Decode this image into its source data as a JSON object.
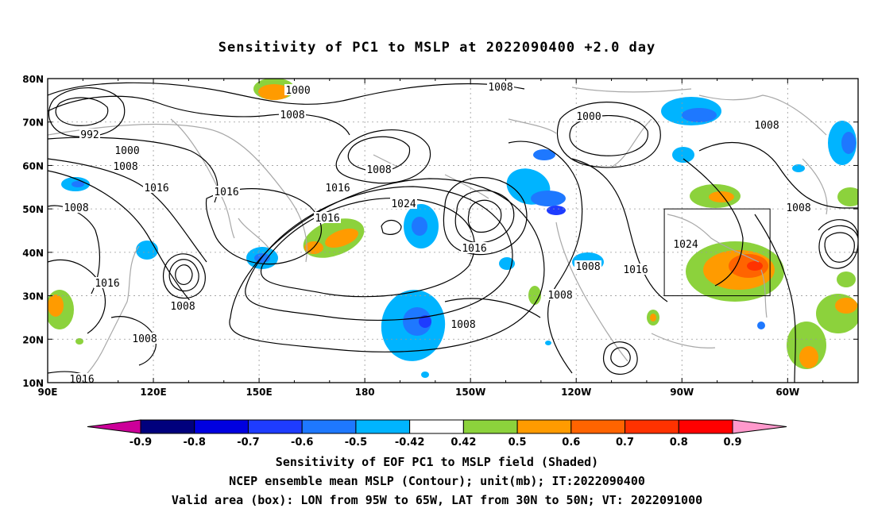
{
  "chart_data": {
    "type": "heatmap",
    "title": "Sensitivity of PC1 to MSLP at 2022090400 +2.0 day",
    "x_ticks": [
      "90E",
      "120E",
      "150E",
      "180",
      "150W",
      "120W",
      "90W",
      "60W"
    ],
    "y_ticks": [
      "10N",
      "20N",
      "30N",
      "40N",
      "50N",
      "60N",
      "70N",
      "80N"
    ],
    "lon_range": [
      90,
      320
    ],
    "lat_range": [
      10,
      80
    ],
    "colorbar": {
      "labels": [
        "-0.9",
        "-0.8",
        "-0.7",
        "-0.6",
        "-0.5",
        "-0.42",
        "0.42",
        "0.5",
        "0.6",
        "0.7",
        "0.8",
        "0.9"
      ],
      "colors": [
        "#00007d",
        "#0000e0",
        "#1e3cff",
        "#1e78ff",
        "#00b4ff",
        "#ffffff",
        "#8cd23c",
        "#ff9b00",
        "#ff6400",
        "#ff3200",
        "#ff0000"
      ],
      "under_color": "#cc0099",
      "over_color": "#ff99cc"
    },
    "contour_labels": [
      "1000",
      "1008",
      "992",
      "1000",
      "1008",
      "1008",
      "1016",
      "1016",
      "1008",
      "1016",
      "1024",
      "1016",
      "1016",
      "1008",
      "1008",
      "1016",
      "1000",
      "1008",
      "1008",
      "1008",
      "1008",
      "1016",
      "1024",
      "1008",
      "1008",
      "1008",
      "1016"
    ],
    "valid_box": {
      "lon": [
        -95,
        -65
      ],
      "lat": [
        30,
        50
      ]
    },
    "captions": [
      "Sensitivity of EOF PC1 to MSLP field (Shaded)",
      "NCEP ensemble mean MSLP (Contour); unit(mb); IT:2022090400",
      "Valid area (box): LON from 95W to 65W, LAT from 30N to 50N; VT: 2022091000"
    ]
  }
}
